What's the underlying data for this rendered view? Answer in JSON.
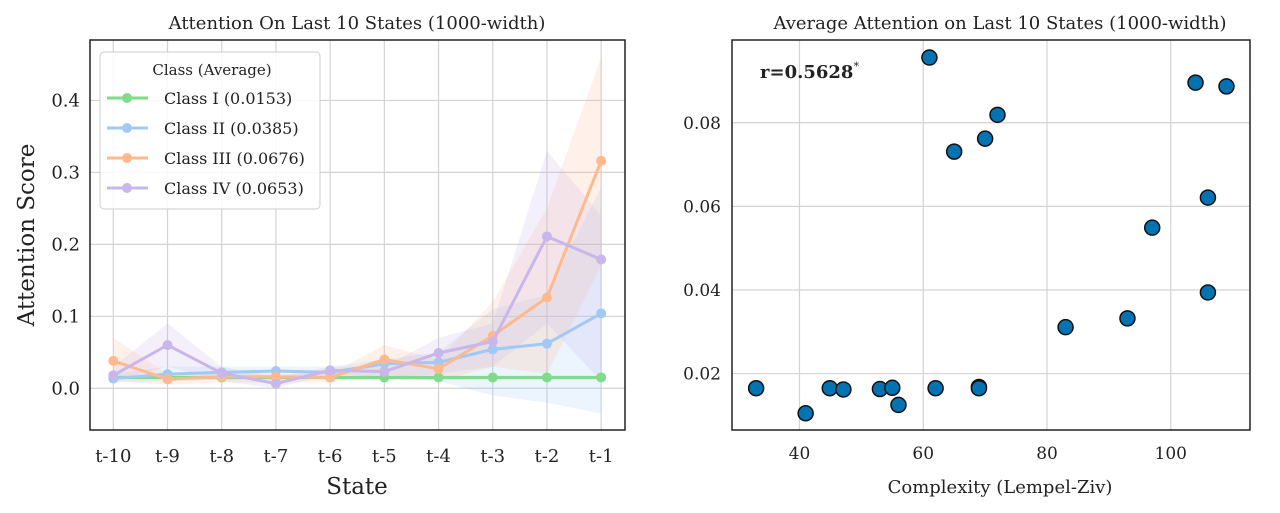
{
  "chart_data": [
    {
      "type": "line",
      "title": "Attention On Last 10 States (1000-width)",
      "xlabel": "State",
      "ylabel": "Attention Score",
      "categories": [
        "t-10",
        "t-9",
        "t-8",
        "t-7",
        "t-6",
        "t-5",
        "t-4",
        "t-3",
        "t-2",
        "t-1"
      ],
      "ylim": [
        -0.058,
        0.484
      ],
      "yticks": [
        0.0,
        0.1,
        0.2,
        0.3,
        0.4
      ],
      "ytick_labels": [
        "0.0",
        "0.1",
        "0.2",
        "0.3",
        "0.4"
      ],
      "grid": true,
      "legend": {
        "title": "Class (Average)",
        "placement": "top-left"
      },
      "series": [
        {
          "name": "Class I (0.0153)",
          "color": "#7fdc8a",
          "values": [
            0.015,
            0.015,
            0.015,
            0.015,
            0.015,
            0.015,
            0.015,
            0.015,
            0.015,
            0.015
          ],
          "band_lower": [
            0.012,
            0.012,
            0.012,
            0.012,
            0.012,
            0.012,
            0.012,
            0.012,
            0.012,
            0.012
          ],
          "band_upper": [
            0.018,
            0.018,
            0.018,
            0.018,
            0.018,
            0.018,
            0.018,
            0.018,
            0.018,
            0.018
          ]
        },
        {
          "name": "Class II (0.0385)",
          "color": "#a1c9f4",
          "values": [
            0.0135,
            0.0196,
            0.022,
            0.024,
            0.022,
            0.034,
            0.036,
            0.054,
            0.062,
            0.104
          ],
          "band_lower": [
            0.008,
            0.01,
            0.012,
            0.014,
            0.012,
            0.015,
            0.01,
            -0.01,
            -0.02,
            -0.035
          ],
          "band_upper": [
            0.02,
            0.03,
            0.03,
            0.03,
            0.03,
            0.04,
            0.05,
            0.11,
            0.13,
            0.28
          ]
        },
        {
          "name": "Class III (0.0676)",
          "color": "#ffb98f",
          "values": [
            0.038,
            0.0126,
            0.016,
            0.016,
            0.015,
            0.04,
            0.027,
            0.073,
            0.126,
            0.316
          ],
          "band_lower": [
            0.01,
            0.005,
            0.008,
            0.008,
            0.008,
            0.02,
            0.01,
            0.03,
            0.02,
            0.17
          ],
          "band_upper": [
            0.07,
            0.02,
            0.025,
            0.02,
            0.02,
            0.06,
            0.04,
            0.12,
            0.25,
            0.46
          ]
        },
        {
          "name": "Class IV (0.0653)",
          "color": "#c9b6ea",
          "values": [
            0.018,
            0.06,
            0.021,
            0.0065,
            0.025,
            0.023,
            0.049,
            0.065,
            0.211,
            0.179
          ],
          "band_lower": [
            0.01,
            0.03,
            0.01,
            0.0,
            0.02,
            0.015,
            0.02,
            0.03,
            0.09,
            0.01
          ],
          "band_upper": [
            0.03,
            0.09,
            0.03,
            0.015,
            0.03,
            0.03,
            0.07,
            0.09,
            0.33,
            0.24
          ]
        }
      ]
    },
    {
      "type": "scatter",
      "title": "Average Attention on Last 10 States (1000-width)",
      "xlabel": "Complexity (Lempel-Ziv)",
      "ylabel": "",
      "xlim": [
        29.1,
        112.8
      ],
      "ylim": [
        0.0065,
        0.0998
      ],
      "xticks": [
        40,
        60,
        80,
        100
      ],
      "xtick_labels": [
        "40",
        "60",
        "80",
        "100"
      ],
      "yticks": [
        0.02,
        0.04,
        0.06,
        0.08
      ],
      "ytick_labels": [
        "0.02",
        "0.04",
        "0.06",
        "0.08"
      ],
      "grid": true,
      "color": "#0173b2",
      "annotation": {
        "text": "r=0.5628",
        "superscript": "*"
      },
      "points": [
        [
          33.0,
          0.0165
        ],
        [
          41.0,
          0.0105
        ],
        [
          44.9,
          0.0165
        ],
        [
          47.1,
          0.0162
        ],
        [
          53.0,
          0.0163
        ],
        [
          55.0,
          0.0166
        ],
        [
          56.0,
          0.0125
        ],
        [
          61.0,
          0.0956
        ],
        [
          62.0,
          0.0165
        ],
        [
          65.0,
          0.0731
        ],
        [
          69.0,
          0.0168
        ],
        [
          69.0,
          0.0165
        ],
        [
          70.0,
          0.0762
        ],
        [
          72.0,
          0.0819
        ],
        [
          83.0,
          0.0311
        ],
        [
          93.0,
          0.0332
        ],
        [
          97.0,
          0.0549
        ],
        [
          104.0,
          0.0896
        ],
        [
          106.0,
          0.0621
        ],
        [
          106.0,
          0.0394
        ],
        [
          109.0,
          0.0887
        ]
      ]
    }
  ]
}
